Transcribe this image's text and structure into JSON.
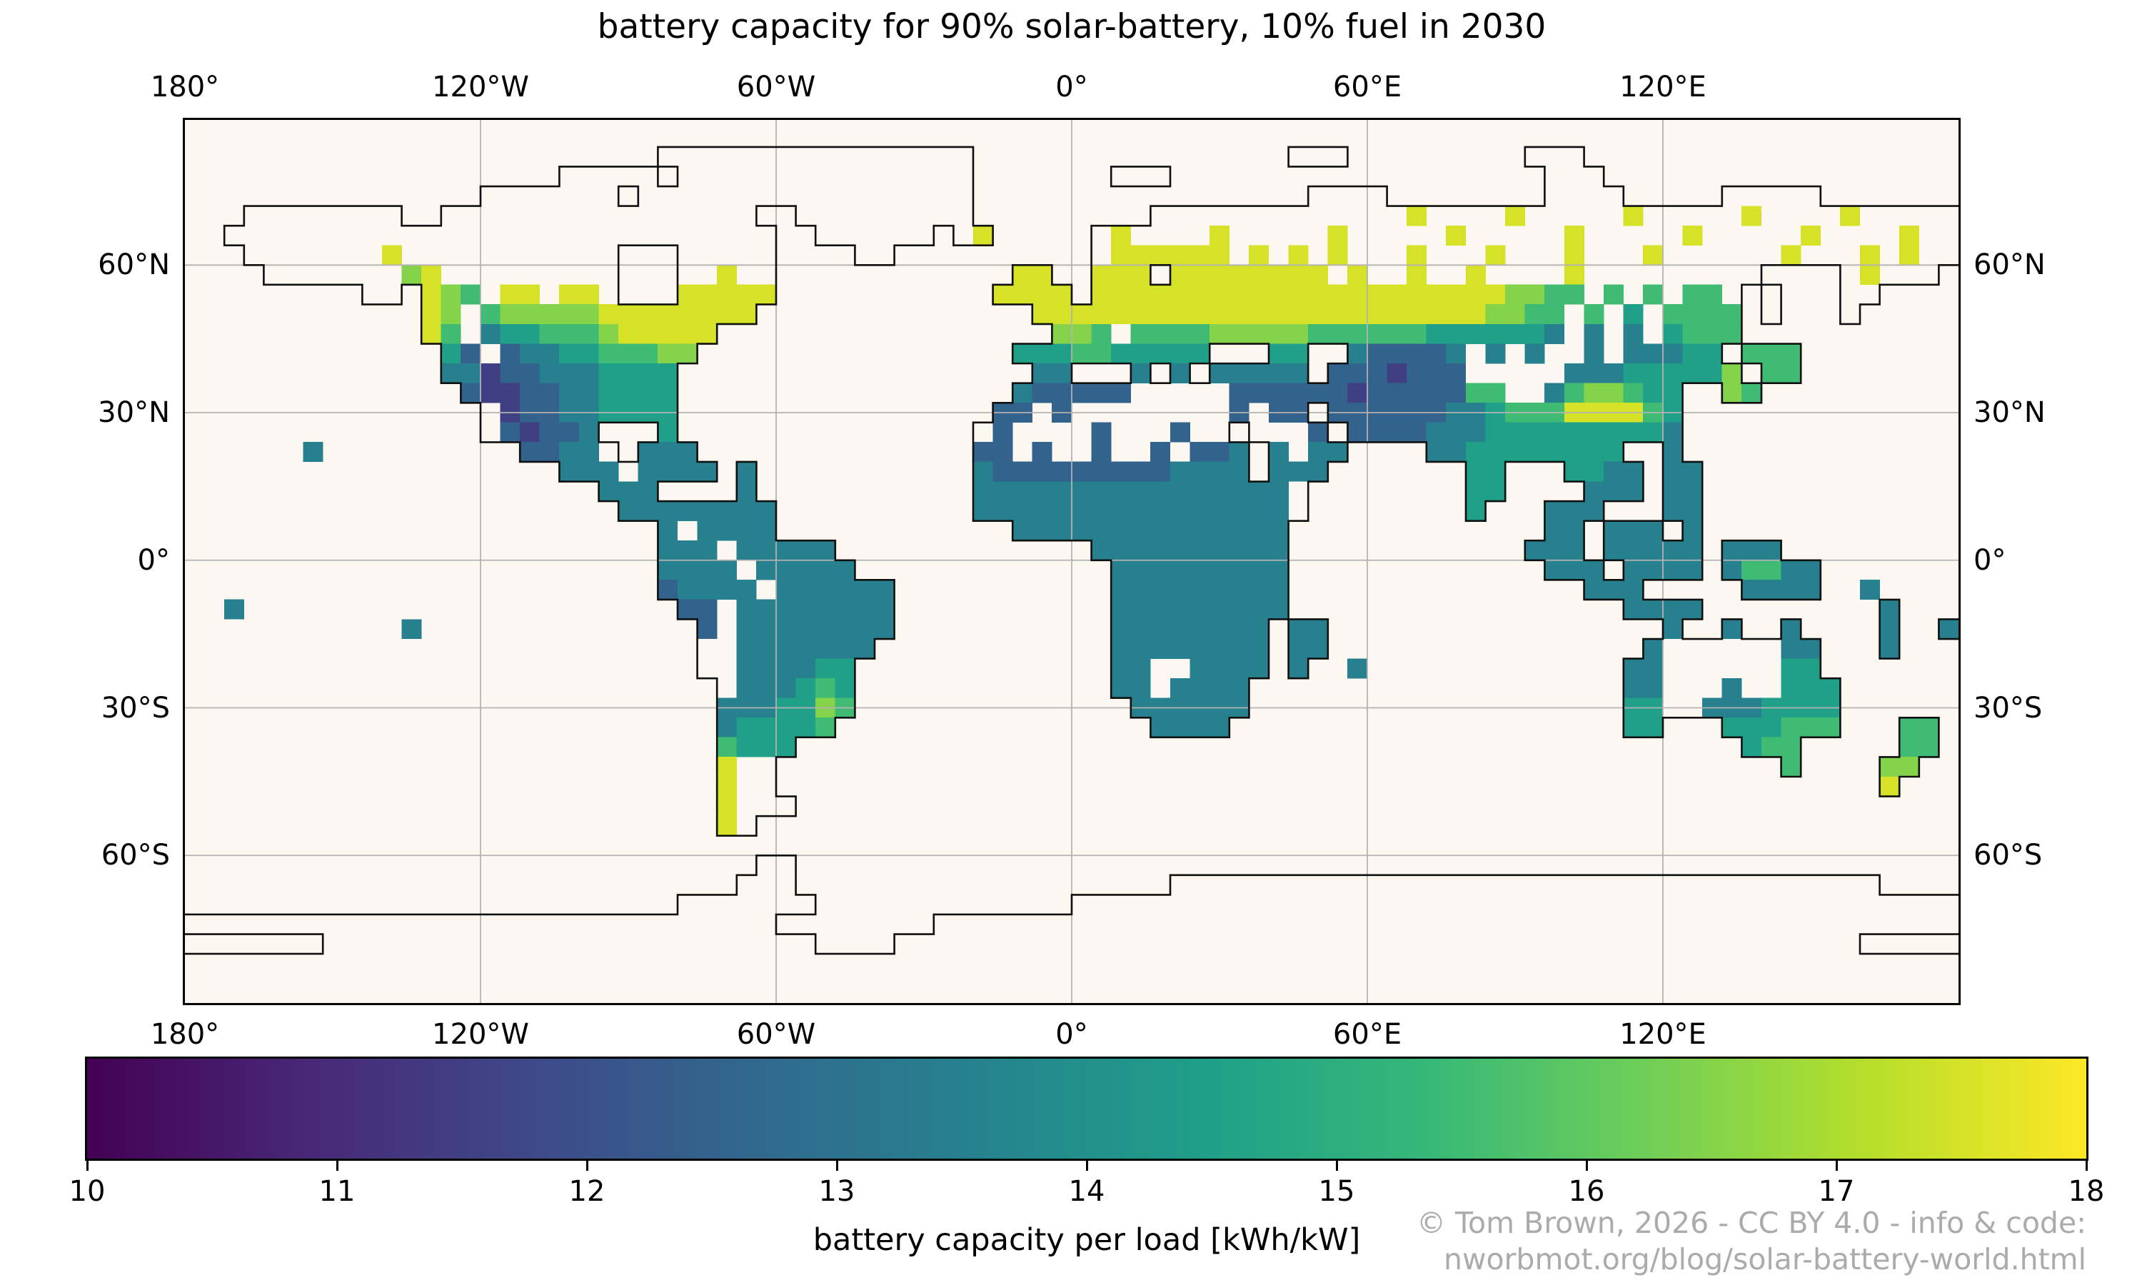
{
  "title": "battery capacity for 90% solar-battery, 10% fuel in 2030",
  "map": {
    "lon_ticks": [
      {
        "label": "180°",
        "lon": -180
      },
      {
        "label": "120°W",
        "lon": -120
      },
      {
        "label": "60°W",
        "lon": -60
      },
      {
        "label": "0°",
        "lon": 0
      },
      {
        "label": "60°E",
        "lon": 60
      },
      {
        "label": "120°E",
        "lon": 120
      }
    ],
    "lat_ticks": [
      {
        "label": "60°N",
        "lat": 60
      },
      {
        "label": "30°N",
        "lat": 30
      },
      {
        "label": "0°",
        "lat": 0
      },
      {
        "label": "30°S",
        "lat": -30
      },
      {
        "label": "60°S",
        "lat": -60
      }
    ],
    "gridline_lons": [
      -120,
      -60,
      0,
      60,
      120
    ],
    "gridline_lats": [
      60,
      30,
      0,
      -30,
      -60
    ]
  },
  "colorbar": {
    "label": "battery capacity per load [kWh/kW]",
    "min": 10,
    "max": 18,
    "ticks": [
      10,
      11,
      12,
      13,
      14,
      15,
      16,
      17,
      18
    ]
  },
  "attribution": {
    "line1": "© Tom Brown, 2026 - CC BY 4.0 - info & code:",
    "line2": "nworbmot.org/blog/solar-battery-world.html"
  },
  "colors": {
    "ocean": "#fdf7f2",
    "gridline": "#b3b3b3",
    "coastline": "#101010",
    "attribution": "#ababab",
    "viridis": [
      "#440154",
      "#482878",
      "#3e4989",
      "#31688e",
      "#26828e",
      "#1f9e89",
      "#35b779",
      "#6ece58",
      "#b5de2b",
      "#fde725"
    ]
  },
  "chart_data": {
    "type": "heatmap",
    "title": "battery capacity for 90% solar-battery, 10% fuel in 2030",
    "value_label": "battery capacity per load [kWh/kW]",
    "colormap": "viridis",
    "vmin": 10,
    "vmax": 18,
    "projection": "equirectangular (PlateCarree), lon -180..180, lat -90..90, gridlines every 60° lon / 30° lat",
    "regional_values": [
      {
        "region": "UK, northern-central Europe, Baltics, western Russia (48-62N)",
        "value_kwh_per_kw": "17.5-18"
      },
      {
        "region": "Scandinavian coasts & scattered Arctic Russia cells",
        "value_kwh_per_kw": "17.5-18"
      },
      {
        "region": "Southern Canada, Great Lakes, Quebec, New England",
        "value_kwh_per_kw": "17-18"
      },
      {
        "region": "US Pacific Northwest coast",
        "value_kwh_per_kw": "16.5-17.5"
      },
      {
        "region": "US Midwest / northern plains",
        "value_kwh_per_kw": "14.5-16.5"
      },
      {
        "region": "US Southwest, northern Mexico, Iran, Central-Asian deserts",
        "value_kwh_per_kw": "11.5-12.5"
      },
      {
        "region": "Mediterranean Europe, Turkey, North-African coast",
        "value_kwh_per_kw": "12.5-15"
      },
      {
        "region": "Sahel, tropical Africa, Amazon, India, Southeast Asia, Indonesia",
        "value_kwh_per_kw": "13.5-14.5"
      },
      {
        "region": "Sichuan basin, China (~30N 105E) bright spot",
        "value_kwh_per_kw": "17.5-18"
      },
      {
        "region": "NE China, Korea, Japan",
        "value_kwh_per_kw": "15-16.5"
      },
      {
        "region": "SE Brazil / Uruguay",
        "value_kwh_per_kw": "15-16.5"
      },
      {
        "region": "Southern Chile (40-55S)",
        "value_kwh_per_kw": "17-18"
      },
      {
        "region": "New Zealand (South Island brightest)",
        "value_kwh_per_kw": "15.5-17.5"
      },
      {
        "region": "Australian east & south coasts (interior no data)",
        "value_kwh_per_kw": "13.5-15"
      },
      {
        "region": "Sahara & Arabian interior, Tibet, central Australia, Patagonia, Greenland, Antarctica, high Arctic",
        "value_kwh_per_kw": "no data (white)"
      }
    ],
    "grid": {
      "lon_west": -180,
      "lat_north": 84,
      "cell_degrees": 4,
      "encoding": "Each row is 9 chunks of 10 chars = 90 columns of 4° from 180W to 180E; rows step 4° southward from 84N. '.'=ocean/no data, 'o'=land without data (white), digit d=1..8 means value ≈ 9.5+d kWh/kW (1≈10.5 … 8≈17.5).",
      "rows": [
        [
          "..........",
          "..........",
          "....oooooo",
          "oooooooooo",
          "..........",
          "......ooo.",
          "........oo",
          "o.........",
          ".........."
        ],
        [
          "..........",
          ".........o",
          "oooo.ooooo",
          "oooooooooo",
          ".......ooo",
          "..........",
          ".........o",
          "oo........",
          ".........."
        ],
        [
          "..........",
          ".....ooooo",
          "oo.ooooooo",
          "oooooooooo",
          "..........",
          ".......ooo",
          "o........o",
          "ooo.....oo",
          "ooo......."
        ],
        [
          "...ooooooo",
          "o..ooooooo",
          "ooooooooo.",
          ".ooooooooo",
          ".........o",
          "oooooooooo",
          "oo8oooo8oo",
          "ooo8ooooo8",
          "oooo8ooooo"
        ],
        [
          "..oooooooo",
          "oooooooooo",
          "oooooooooo",
          "..oooooo.o",
          "8.....o8oo",
          "oo8ooooo8o",
          "oooo8ooooo",
          "8ooooo8ooo",
          "oo8oooo8oo"
        ],
        [
          "...ooooooo",
          "8ooooooooo",
          "oo...ooooo",
          "....oo....",
          "......o888",
          "888o8o8o8o",
          "oo8ooo8ooo",
          "8ooo8ooooo",
          "o8ooo8o8oo"
        ],
        [
          "....oooooo",
          "o78ooooooo",
          "oo...oo8oo",
          "..........",
          "..88..888.",
          "88888888o8",
          "oo8oo8oooo",
          "8ooooooooo",
          "....o8ooo."
        ],
        [
          ".........o",
          "o.876o88o8",
          "8o...88888",
          "..........",
          ".8888.8888",
          "8888888888",
          "8888888776",
          "6o6o6o66o.",
          "o...oo...."
        ],
        [
          "..........",
          "..87o67777",
          "788888888.",
          "..........",
          "...8888888",
          "8888888888",
          "8888887766",
          "o6o5o6666.",
          "o...o....."
        ],
        [
          "..........",
          "..86o45566",
          "6788888...",
          "..........",
          "....776o66",
          "6677777666",
          "6665555554",
          "o4o4o5666.",
          ".........."
        ],
        [
          "..........",
          "...53o3445",
          "566677....",
          "..........",
          "..55566555",
          "55...55..4",
          "33334o4o4o",
          "o4o44455.6",
          "66........"
        ],
        [
          "..........",
          "...4423344",
          "45555.....",
          "..........",
          "...44...4.",
          "4.44444.33",
          "32333ooooo",
          "444555557.",
          "66........"
        ],
        [
          "..........",
          "....322334",
          "45555.....",
          "..........",
          "..433333oo",
          "ooo3333332",
          "3333366oo4",
          "677655..76",
          ".........."
        ],
        [
          "..........",
          ".....o2334",
          "45555.....",
          "..........",
          ".33o3ooooo",
          "ooo3o33.33",
          "3333445666",
          "888865....",
          ".........."
        ],
        [
          "..........",
          ".....o3233",
          "4...5.....",
          "..........",
          "o3oooo3ooo",
          "3oo.ooo3.3",
          "3334445555",
          "555554....",
          ".........."
        ],
        [
          "......4...",
          ".......334",
          "4o.444....",
          "..........",
          "33o3oo3oo3",
          "o334.4o44.",
          "...4455555",
          "555..4....",
          ".........."
        ],
        [
          "..........",
          ".........4",
          "44o4444.4.",
          "..........",
          "4333333333",
          "4444.444..",
          ".....55...",
          "5544.44...",
          ".........."
        ],
        [
          "..........",
          "..........",
          ".444....4.",
          "..........",
          "4444444444",
          "444444o...",
          ".....55...",
          ".444.44...",
          ".........."
        ],
        [
          "..........",
          "..........",
          "..44444444",
          "..........",
          "4444444444",
          "444444o...",
          ".....5...4",
          "44...44...",
          ".........."
        ],
        [
          "..........",
          "..........",
          "....4o4444",
          "..........",
          "..44444444",
          "444444....",
          ".........4",
          "4.444.4...",
          ".........."
        ],
        [
          "..........",
          "..........",
          "....444o44",
          "444.......",
          "......4444",
          "444444....",
          "........44",
          "4.44444.44",
          "4........."
        ],
        [
          "..........",
          "..........",
          "....4444o4",
          "4444......",
          ".......444",
          "444444....",
          ".........4",
          "44.4444.46",
          "644......."
        ],
        [
          "..........",
          "..........",
          "....34444o",
          "444444....",
          ".......444",
          "444444....",
          "..........",
          ".444.....4",
          "444..4...."
        ],
        [
          "..4.......",
          "..........",
          ".....33o44",
          "444444....",
          ".......444",
          "444444....",
          "..........",
          "...4444...",
          "......4..."
        ],
        [
          "..........",
          ".4........",
          "......3o44",
          "444444....",
          ".......444",
          "44444.44..",
          "..........",
          ".....4..4.",
          ".4....4..4"
        ],
        [
          "..........",
          "..........",
          "......oo44",
          "44444.....",
          ".......444",
          "44444.44..",
          "..........",
          "....4ooooo",
          "o44...4..."
        ],
        [
          "..........",
          "..........",
          "......oo44",
          "4455......",
          ".......44o",
          "o4444.4..4",
          "..........",
          "...44ooooo",
          "o55......."
        ],
        [
          "..........",
          "..........",
          ".......o44",
          "4565......",
          ".......44o",
          "4444......",
          "..........",
          "...44ooo4o",
          "o555......"
        ],
        [
          "..........",
          "..........",
          ".......444",
          "5576......",
          "........44",
          "4444......",
          "..........",
          "...55oo444",
          "5555......"
        ],
        [
          "..........",
          "..........",
          ".......455",
          "556.......",
          ".........4",
          "444.......",
          "..........",
          "...55...55",
          "5666...66."
        ],
        [
          "..........",
          "..........",
          ".......655",
          "5.........",
          "..........",
          "..........",
          "..........",
          ".........5",
          "66.....66."
        ],
        [
          "..........",
          "..........",
          ".......8oo",
          "..........",
          "..........",
          "..........",
          "..........",
          "..........",
          ".6....77.."
        ],
        [
          "..........",
          "..........",
          ".......8oo",
          "..........",
          "..........",
          "..........",
          "..........",
          "..........",
          "......8..."
        ],
        [
          "..........",
          "..........",
          ".......8oo",
          "o.........",
          "..........",
          "..........",
          "..........",
          "..........",
          ".........."
        ],
        [
          "..........",
          "..........",
          ".......8o.",
          "..........",
          "..........",
          "..........",
          "..........",
          "..........",
          ".........."
        ],
        [
          "..........",
          "..........",
          "..........",
          "..........",
          "..........",
          "..........",
          "..........",
          "..........",
          ".........."
        ],
        [
          "..........",
          "..........",
          ".........o",
          "o.........",
          "..........",
          "..........",
          "..........",
          "..........",
          ".........."
        ],
        [
          "..........",
          "..........",
          "........oo",
          "o.........",
          "..........",
          "oooooooooo",
          "oooooooooo",
          "oooooooooo",
          "oooooo...."
        ],
        [
          "..........",
          "..........",
          ".....ooooo",
          "oo........",
          ".....ooooo",
          "oooooooooo",
          "oooooooooo",
          "oooooooooo",
          "oooooooooo"
        ],
        [
          "oooooooooo",
          "oooooooooo",
          "oooooooooo",
          "........oo",
          "oooooooooo",
          "oooooooooo",
          "oooooooooo",
          "oooooooooo",
          "oooooooooo"
        ],
        [
          ".......ooo",
          "oooooooooo",
          "oooooooooo",
          "oo....oooo",
          "oooooooooo",
          "oooooooooo",
          "oooooooooo",
          "oooooooooo",
          "ooooo....."
        ],
        [
          "oooooooooo",
          "oooooooooo",
          "oooooooooo",
          "oooooooooo",
          "oooooooooo",
          "oooooooooo",
          "oooooooooo",
          "oooooooooo",
          "oooooooooo"
        ],
        [
          "oooooooooo",
          "oooooooooo",
          "oooooooooo",
          "oooooooooo",
          "oooooooooo",
          "oooooooooo",
          "oooooooooo",
          "oooooooooo",
          "oooooooooo"
        ],
        [
          "oooooooooo",
          "oooooooooo",
          "oooooooooo",
          "oooooooooo",
          "oooooooooo",
          "oooooooooo",
          "oooooooooo",
          "oooooooooo",
          "oooooooooo"
        ]
      ]
    }
  }
}
